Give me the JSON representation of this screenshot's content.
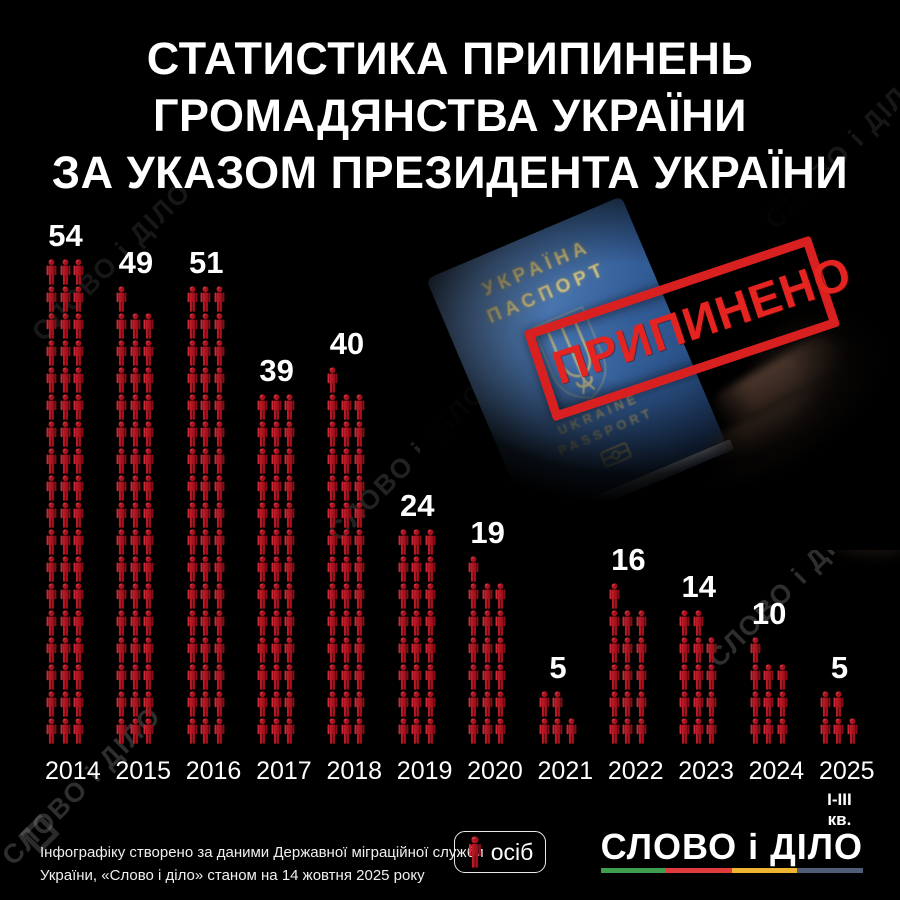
{
  "title": {
    "lines": [
      "СТАТИСТИКА ПРИПИНЕНЬ",
      "ГРОМАДЯНСТВА УКРАЇНИ",
      "ЗА УКАЗОМ ПРЕЗИДЕНТА УКРАЇНИ"
    ]
  },
  "watermark": {
    "text": "СЛОВО і ДІЛО"
  },
  "passport": {
    "country": "УКРАЇНА",
    "doc_type": "ПАСПОРТ",
    "country_en": "UKRAINE",
    "doc_type_en": "PASSPORT",
    "stamp_text": "ПРИПИНЕНО",
    "cover_color": "#3d6aa8",
    "stamp_color": "#d92020"
  },
  "chart_data": {
    "type": "pictogram_bar",
    "title": "Статистика припинень громадянства України за указом Президента України",
    "unit_label": "осіб",
    "icon": "person-icon",
    "icon_color": "#b01420",
    "icons_per_row": 3,
    "categories": [
      "2014",
      "2015",
      "2016",
      "2017",
      "2018",
      "2019",
      "2020",
      "2021",
      "2022",
      "2023",
      "2024",
      "2025"
    ],
    "values": [
      54,
      49,
      51,
      39,
      40,
      24,
      19,
      5,
      16,
      14,
      10,
      5
    ],
    "category_notes": {
      "2025": "І-ІІІ кв."
    },
    "legend_position": "bottom-center",
    "grid": false
  },
  "legend": {
    "label": "осіб"
  },
  "footer": {
    "line1": "Інфографіку створено за даними Державної міграційної служби",
    "line2": "України, «Слово і діло» станом на 14 жовтня 2025 року"
  },
  "logo": {
    "text": "СЛОВО і ДІЛО",
    "underline_colors": [
      "#3f9e4e",
      "#e23b3b",
      "#efb430",
      "#4e5d78"
    ]
  }
}
